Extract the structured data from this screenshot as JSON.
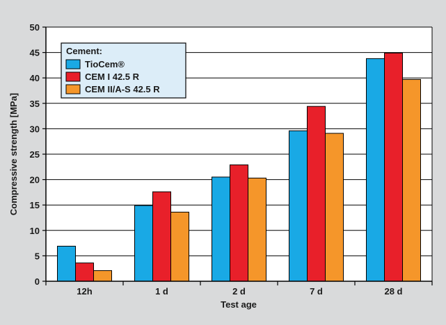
{
  "chart_data": {
    "type": "bar",
    "categories": [
      "12h",
      "1 d",
      "2 d",
      "7 d",
      "28 d"
    ],
    "series": [
      {
        "name": "TioCem®",
        "values": [
          6.9,
          14.9,
          20.5,
          29.6,
          43.8
        ],
        "color": "#19a9e5"
      },
      {
        "name": "CEM I 42.5 R",
        "values": [
          3.6,
          17.6,
          22.9,
          34.4,
          44.9
        ],
        "color": "#e8202a"
      },
      {
        "name": "CEM II/A-S 42.5 R",
        "values": [
          2.1,
          13.6,
          20.3,
          29.1,
          39.7
        ],
        "color": "#f5962a"
      }
    ],
    "title": "",
    "xlabel": "Test age",
    "ylabel": "Compressive strength [MPa]",
    "ylim": [
      0,
      50
    ],
    "yticks": [
      0,
      5,
      10,
      15,
      20,
      25,
      30,
      35,
      40,
      45,
      50
    ],
    "grid": true,
    "legend": {
      "title": "Cement:",
      "placement": "top-left"
    }
  },
  "colors": {
    "page_background": "#d9dadb",
    "plot_background": "#ffffff",
    "legend_background": "#dcedf8",
    "grid": "#000000"
  }
}
